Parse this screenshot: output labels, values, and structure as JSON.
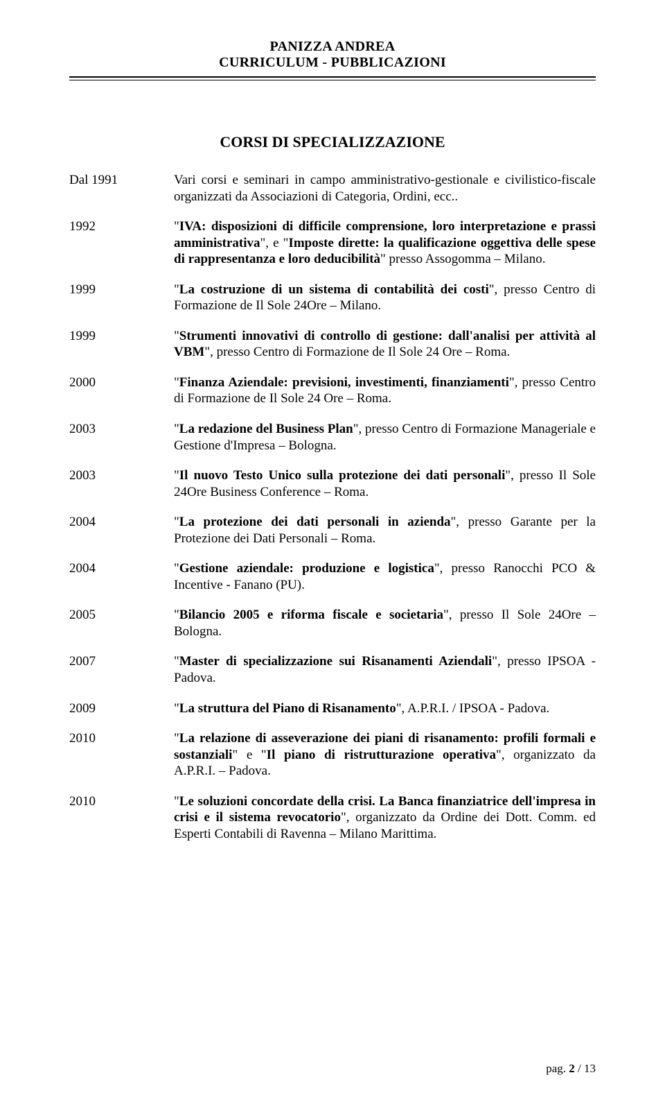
{
  "header": {
    "name": "PANIZZA ANDREA",
    "subtitle": "CURRICULUM - PUBBLICAZIONI"
  },
  "section_title": "CORSI DI SPECIALIZZAZIONE",
  "entries": [
    {
      "year": "Dal 1991",
      "segments": [
        {
          "t": "Vari corsi e seminari in campo amministrativo-gestionale e civilistico-fiscale organizzati da Associazioni di Categoria, Ordini, ecc.."
        }
      ]
    },
    {
      "year": "1992",
      "segments": [
        {
          "t": "\""
        },
        {
          "t": "IVA: disposizioni di difficile comprensione, loro interpretazione e prassi amministrativa",
          "b": true
        },
        {
          "t": "\", e \""
        },
        {
          "t": "Imposte dirette: la qualificazione oggettiva delle spese di rappresentanza e loro deducibilità",
          "b": true
        },
        {
          "t": "\" presso Assogomma – Milano."
        }
      ]
    },
    {
      "year": "1999",
      "segments": [
        {
          "t": "\""
        },
        {
          "t": "La costruzione di un sistema di contabilità dei costi",
          "b": true
        },
        {
          "t": "\", presso Centro di Formazione de Il Sole 24Ore – Milano."
        }
      ]
    },
    {
      "year": "1999",
      "segments": [
        {
          "t": "\""
        },
        {
          "t": "Strumenti innovativi di controllo di gestione: dall'analisi per attività al VBM",
          "b": true
        },
        {
          "t": "\", presso Centro di Formazione de Il Sole 24 Ore – Roma."
        }
      ]
    },
    {
      "year": "2000",
      "segments": [
        {
          "t": "\""
        },
        {
          "t": "Finanza Aziendale: previsioni, investimenti, finanziamenti",
          "b": true
        },
        {
          "t": "\", presso Centro di Formazione de Il Sole 24 Ore – Roma."
        }
      ]
    },
    {
      "year": "2003",
      "segments": [
        {
          "t": "\""
        },
        {
          "t": "La redazione del Business Plan",
          "b": true
        },
        {
          "t": "\", presso Centro di Formazione Manageriale e Gestione d'Impresa – Bologna."
        }
      ]
    },
    {
      "year": "2003",
      "segments": [
        {
          "t": "\""
        },
        {
          "t": "Il nuovo Testo Unico sulla protezione dei dati personali",
          "b": true
        },
        {
          "t": "\", presso Il Sole 24Ore Business Conference – Roma."
        }
      ]
    },
    {
      "year": "2004",
      "segments": [
        {
          "t": "\""
        },
        {
          "t": "La protezione dei dati personali in azienda",
          "b": true
        },
        {
          "t": "\", presso Garante per la Protezione dei Dati Personali – Roma."
        }
      ]
    },
    {
      "year": "2004",
      "segments": [
        {
          "t": "\""
        },
        {
          "t": "Gestione aziendale: produzione e logistica",
          "b": true
        },
        {
          "t": "\", presso Ranocchi PCO & Incentive  - Fanano (PU)."
        }
      ]
    },
    {
      "year": "2005",
      "segments": [
        {
          "t": "\""
        },
        {
          "t": "Bilancio 2005 e riforma fiscale e societaria",
          "b": true
        },
        {
          "t": "\", presso Il Sole 24Ore – Bologna."
        }
      ]
    },
    {
      "year": "2007",
      "segments": [
        {
          "t": "\""
        },
        {
          "t": "Master di specializzazione sui Risanamenti Aziendali",
          "b": true
        },
        {
          "t": "\", presso IPSOA - Padova."
        }
      ]
    },
    {
      "year": "2009",
      "segments": [
        {
          "t": "\""
        },
        {
          "t": "La struttura del Piano di Risanamento",
          "b": true
        },
        {
          "t": "\", A.P.R.I. / IPSOA - Padova."
        }
      ]
    },
    {
      "year": "2010",
      "segments": [
        {
          "t": "\""
        },
        {
          "t": "La relazione di asseverazione dei piani di risanamento: profili formali e sostanziali",
          "b": true
        },
        {
          "t": "\" e \""
        },
        {
          "t": "Il piano di ristrutturazione operativa",
          "b": true
        },
        {
          "t": "\", organizzato da A.P.R.I. – Padova."
        }
      ]
    },
    {
      "year": "2010",
      "segments": [
        {
          "t": "\""
        },
        {
          "t": "Le soluzioni concordate della crisi. La Banca finanziatrice dell'impresa in crisi e il sistema revocatorio",
          "b": true
        },
        {
          "t": "\", organizzato da Ordine dei Dott. Comm. ed Esperti Contabili di Ravenna – Milano Marittima."
        }
      ]
    }
  ],
  "footer": {
    "label": "pag. ",
    "current": "2",
    "sep": " / ",
    "total": "13"
  }
}
